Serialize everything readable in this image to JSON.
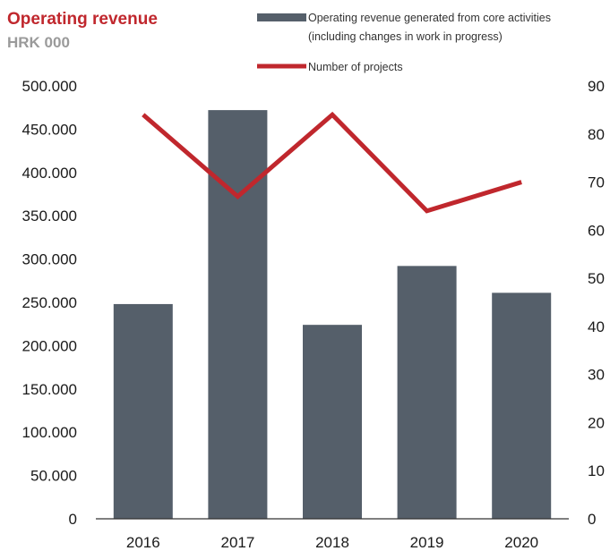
{
  "chart_data": {
    "type": "bar+line",
    "title": "Operating revenue",
    "subtitle": "HRK 000",
    "categories": [
      "2016",
      "2017",
      "2018",
      "2019",
      "2020"
    ],
    "series": [
      {
        "name": "Operating revenue generated from core activities (including changes in work in progress)",
        "name_lines": [
          "Operating revenue generated from core activities",
          "(including changes in work in progress)"
        ],
        "type": "bar",
        "axis": "left",
        "color": "#555f6a",
        "values": [
          248000,
          472000,
          224000,
          292000,
          261000
        ]
      },
      {
        "name": "Number of projects",
        "type": "line",
        "axis": "right",
        "color": "#c0272d",
        "values": [
          84,
          67,
          84,
          64,
          70
        ]
      }
    ],
    "left_axis": {
      "ylim": [
        0,
        500000
      ],
      "ticks": [
        0,
        50000,
        100000,
        150000,
        200000,
        250000,
        300000,
        350000,
        400000,
        450000,
        500000
      ],
      "tick_labels": [
        "0",
        "50.000",
        "100.000",
        "150.000",
        "200.000",
        "250.000",
        "300.000",
        "350.000",
        "400.000",
        "450.000",
        "500.000"
      ]
    },
    "right_axis": {
      "ylim": [
        0,
        90
      ],
      "ticks": [
        0,
        10,
        20,
        30,
        40,
        50,
        60,
        70,
        80,
        90
      ],
      "tick_labels": [
        "0",
        "10",
        "20",
        "30",
        "40",
        "50",
        "60",
        "70",
        "80",
        "90"
      ]
    },
    "legend_position": "top-right",
    "grid": false,
    "colors": {
      "title": "#c0272d",
      "subtitle": "#9a9a9a",
      "bar": "#555f6a",
      "line": "#c0272d",
      "axis": "#333333"
    }
  }
}
